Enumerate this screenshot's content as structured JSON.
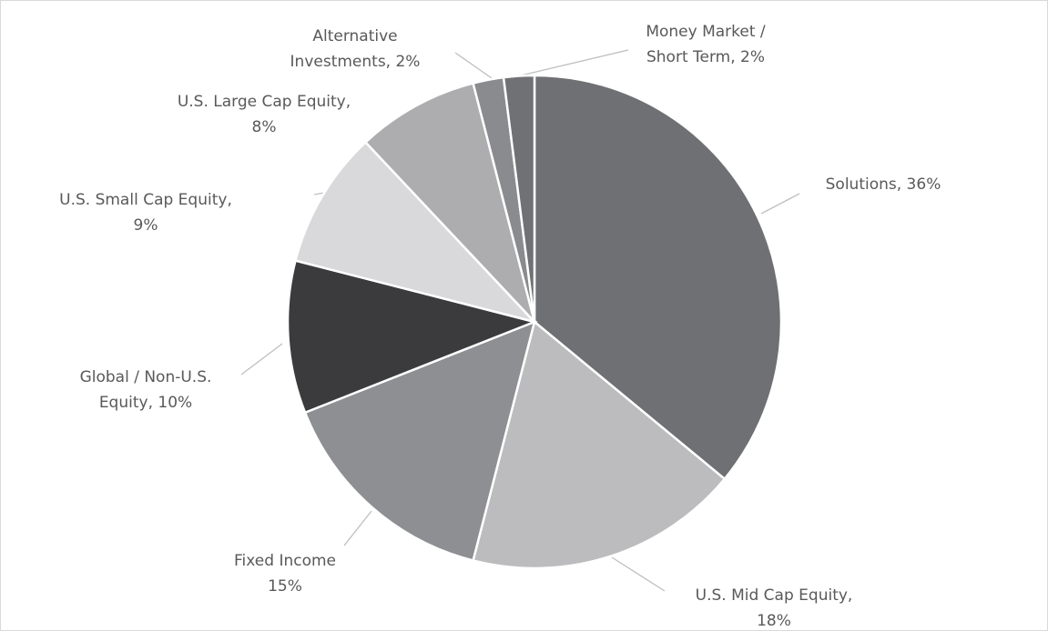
{
  "chart_data": {
    "type": "pie",
    "values": [
      36,
      18,
      15,
      10,
      9,
      8,
      2,
      2
    ],
    "labels": [
      [
        "Solutions, 36%"
      ],
      [
        "U.S. Mid Cap Equity,",
        "18%"
      ],
      [
        "Fixed Income",
        "15%"
      ],
      [
        "Global / Non-U.S.",
        "Equity, 10%"
      ],
      [
        "U.S. Small Cap Equity,",
        "9%"
      ],
      [
        "U.S. Large Cap Equity,",
        "8%"
      ],
      [
        "Alternative",
        "Investments, 2%"
      ],
      [
        "Money Market /",
        "Short Term, 2%"
      ]
    ],
    "colors": [
      "#6f7074",
      "#bcbcbe",
      "#8e8f93",
      "#3b3b3d",
      "#d9d9db",
      "#adadaf",
      "#8a8b8e",
      "#707174"
    ]
  }
}
